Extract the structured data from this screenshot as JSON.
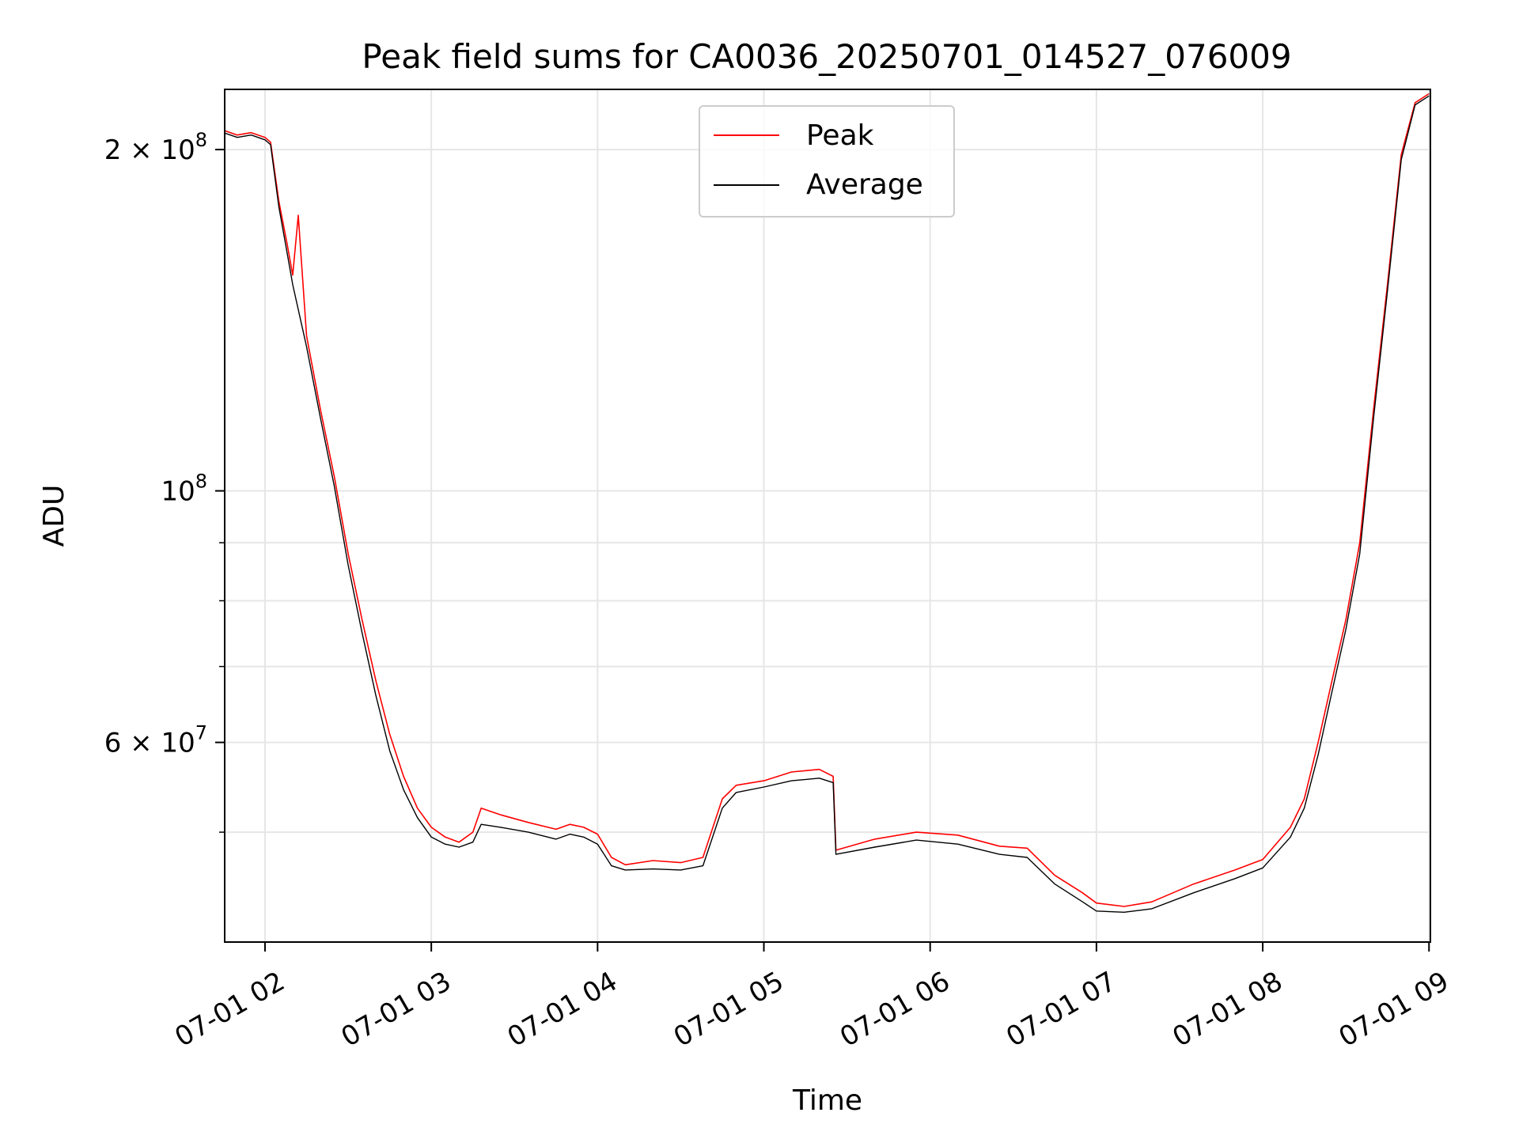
{
  "chart_data": {
    "type": "line",
    "title": "Peak field sums for CA0036_20250701_014527_076009",
    "xlabel": "Time",
    "ylabel": "ADU",
    "yscale": "log",
    "xlim": [
      "2025-07-01 01:45:27",
      "2025-07-01 09:00:30"
    ],
    "ylim": [
      40000000,
      226000000
    ],
    "grid": true,
    "legend_position": "upper-center",
    "x_ticks": [
      {
        "value": "2025-07-01 02:00",
        "label": "07-01 02"
      },
      {
        "value": "2025-07-01 03:00",
        "label": "07-01 03"
      },
      {
        "value": "2025-07-01 04:00",
        "label": "07-01 04"
      },
      {
        "value": "2025-07-01 05:00",
        "label": "07-01 05"
      },
      {
        "value": "2025-07-01 06:00",
        "label": "07-01 06"
      },
      {
        "value": "2025-07-01 07:00",
        "label": "07-01 07"
      },
      {
        "value": "2025-07-01 08:00",
        "label": "07-01 08"
      },
      {
        "value": "2025-07-01 09:00",
        "label": "07-01 09"
      }
    ],
    "y_ticks": [
      {
        "value": 60000000,
        "base": "6 × 10",
        "exp": "7"
      },
      {
        "value": 100000000,
        "base": "10",
        "exp": "8"
      },
      {
        "value": 200000000,
        "base": "2 × 10",
        "exp": "8"
      }
    ],
    "y_minor_grid": [
      50000000,
      70000000,
      80000000,
      90000000
    ],
    "series": [
      {
        "name": "Peak",
        "color": "#ff0000",
        "points": [
          [
            "2025-07-01 01:45",
            208000000
          ],
          [
            "2025-07-01 01:50",
            206000000
          ],
          [
            "2025-07-01 01:55",
            207000000
          ],
          [
            "2025-07-01 02:00",
            205000000
          ],
          [
            "2025-07-01 02:02",
            203000000
          ],
          [
            "2025-07-01 02:05",
            180000000
          ],
          [
            "2025-07-01 02:08",
            165000000
          ],
          [
            "2025-07-01 02:10",
            155000000
          ],
          [
            "2025-07-01 02:12",
            175000000
          ],
          [
            "2025-07-01 02:15",
            137000000
          ],
          [
            "2025-07-01 02:20",
            118000000
          ],
          [
            "2025-07-01 02:25",
            103000000
          ],
          [
            "2025-07-01 02:30",
            88000000
          ],
          [
            "2025-07-01 02:35",
            77000000
          ],
          [
            "2025-07-01 02:40",
            68000000
          ],
          [
            "2025-07-01 02:45",
            61000000
          ],
          [
            "2025-07-01 02:50",
            56000000
          ],
          [
            "2025-07-01 02:55",
            52500000
          ],
          [
            "2025-07-01 03:00",
            50500000
          ],
          [
            "2025-07-01 03:05",
            49500000
          ],
          [
            "2025-07-01 03:10",
            49000000
          ],
          [
            "2025-07-01 03:15",
            50000000
          ],
          [
            "2025-07-01 03:18",
            52500000
          ],
          [
            "2025-07-01 03:25",
            51800000
          ],
          [
            "2025-07-01 03:35",
            51000000
          ],
          [
            "2025-07-01 03:45",
            50300000
          ],
          [
            "2025-07-01 03:50",
            50800000
          ],
          [
            "2025-07-01 03:55",
            50500000
          ],
          [
            "2025-07-01 04:00",
            49800000
          ],
          [
            "2025-07-01 04:05",
            47500000
          ],
          [
            "2025-07-01 04:10",
            46800000
          ],
          [
            "2025-07-01 04:20",
            47200000
          ],
          [
            "2025-07-01 04:30",
            47000000
          ],
          [
            "2025-07-01 04:38",
            47500000
          ],
          [
            "2025-07-01 04:45",
            53500000
          ],
          [
            "2025-07-01 04:50",
            55000000
          ],
          [
            "2025-07-01 05:00",
            55500000
          ],
          [
            "2025-07-01 05:10",
            56500000
          ],
          [
            "2025-07-01 05:20",
            56800000
          ],
          [
            "2025-07-01 05:25",
            56000000
          ],
          [
            "2025-07-01 05:26",
            48200000
          ],
          [
            "2025-07-01 05:40",
            49300000
          ],
          [
            "2025-07-01 05:55",
            50000000
          ],
          [
            "2025-07-01 06:10",
            49700000
          ],
          [
            "2025-07-01 06:25",
            48600000
          ],
          [
            "2025-07-01 06:35",
            48400000
          ],
          [
            "2025-07-01 06:45",
            45800000
          ],
          [
            "2025-07-01 06:55",
            44200000
          ],
          [
            "2025-07-01 07:00",
            43300000
          ],
          [
            "2025-07-01 07:10",
            43000000
          ],
          [
            "2025-07-01 07:20",
            43400000
          ],
          [
            "2025-07-01 07:35",
            45000000
          ],
          [
            "2025-07-01 07:50",
            46300000
          ],
          [
            "2025-07-01 08:00",
            47300000
          ],
          [
            "2025-07-01 08:10",
            50500000
          ],
          [
            "2025-07-01 08:15",
            53500000
          ],
          [
            "2025-07-01 08:20",
            60000000
          ],
          [
            "2025-07-01 08:25",
            68000000
          ],
          [
            "2025-07-01 08:30",
            77000000
          ],
          [
            "2025-07-01 08:35",
            90000000
          ],
          [
            "2025-07-01 08:40",
            118000000
          ],
          [
            "2025-07-01 08:45",
            152000000
          ],
          [
            "2025-07-01 08:50",
            198000000
          ],
          [
            "2025-07-01 08:55",
            220000000
          ],
          [
            "2025-07-01 09:00",
            224000000
          ]
        ]
      },
      {
        "name": "Average",
        "color": "#000000",
        "points": [
          [
            "2025-07-01 01:45",
            207000000
          ],
          [
            "2025-07-01 01:50",
            205000000
          ],
          [
            "2025-07-01 01:55",
            206000000
          ],
          [
            "2025-07-01 02:00",
            204000000
          ],
          [
            "2025-07-01 02:02",
            202000000
          ],
          [
            "2025-07-01 02:05",
            178000000
          ],
          [
            "2025-07-01 02:08",
            162000000
          ],
          [
            "2025-07-01 02:10",
            152000000
          ],
          [
            "2025-07-01 02:15",
            134000000
          ],
          [
            "2025-07-01 02:20",
            116000000
          ],
          [
            "2025-07-01 02:25",
            101000000
          ],
          [
            "2025-07-01 02:30",
            86000000
          ],
          [
            "2025-07-01 02:35",
            75000000
          ],
          [
            "2025-07-01 02:40",
            66000000
          ],
          [
            "2025-07-01 02:45",
            59000000
          ],
          [
            "2025-07-01 02:50",
            54500000
          ],
          [
            "2025-07-01 02:55",
            51500000
          ],
          [
            "2025-07-01 03:00",
            49500000
          ],
          [
            "2025-07-01 03:05",
            48800000
          ],
          [
            "2025-07-01 03:10",
            48500000
          ],
          [
            "2025-07-01 03:15",
            49000000
          ],
          [
            "2025-07-01 03:18",
            50800000
          ],
          [
            "2025-07-01 03:25",
            50500000
          ],
          [
            "2025-07-01 03:35",
            50000000
          ],
          [
            "2025-07-01 03:45",
            49300000
          ],
          [
            "2025-07-01 03:50",
            49800000
          ],
          [
            "2025-07-01 03:55",
            49500000
          ],
          [
            "2025-07-01 04:00",
            48800000
          ],
          [
            "2025-07-01 04:05",
            46700000
          ],
          [
            "2025-07-01 04:10",
            46300000
          ],
          [
            "2025-07-01 04:20",
            46400000
          ],
          [
            "2025-07-01 04:30",
            46300000
          ],
          [
            "2025-07-01 04:38",
            46700000
          ],
          [
            "2025-07-01 04:45",
            52500000
          ],
          [
            "2025-07-01 04:50",
            54200000
          ],
          [
            "2025-07-01 05:00",
            54800000
          ],
          [
            "2025-07-01 05:10",
            55500000
          ],
          [
            "2025-07-01 05:20",
            55800000
          ],
          [
            "2025-07-01 05:25",
            55300000
          ],
          [
            "2025-07-01 05:26",
            47800000
          ],
          [
            "2025-07-01 05:40",
            48500000
          ],
          [
            "2025-07-01 05:55",
            49200000
          ],
          [
            "2025-07-01 06:10",
            48800000
          ],
          [
            "2025-07-01 06:25",
            47800000
          ],
          [
            "2025-07-01 06:35",
            47500000
          ],
          [
            "2025-07-01 06:45",
            45000000
          ],
          [
            "2025-07-01 06:55",
            43400000
          ],
          [
            "2025-07-01 07:00",
            42600000
          ],
          [
            "2025-07-01 07:10",
            42500000
          ],
          [
            "2025-07-01 07:20",
            42800000
          ],
          [
            "2025-07-01 07:35",
            44200000
          ],
          [
            "2025-07-01 07:50",
            45500000
          ],
          [
            "2025-07-01 08:00",
            46500000
          ],
          [
            "2025-07-01 08:10",
            49500000
          ],
          [
            "2025-07-01 08:15",
            52500000
          ],
          [
            "2025-07-01 08:20",
            58500000
          ],
          [
            "2025-07-01 08:25",
            66500000
          ],
          [
            "2025-07-01 08:30",
            75500000
          ],
          [
            "2025-07-01 08:35",
            88000000
          ],
          [
            "2025-07-01 08:40",
            116000000
          ],
          [
            "2025-07-01 08:45",
            150000000
          ],
          [
            "2025-07-01 08:50",
            196000000
          ],
          [
            "2025-07-01 08:55",
            219000000
          ],
          [
            "2025-07-01 09:00",
            223000000
          ]
        ]
      }
    ]
  }
}
